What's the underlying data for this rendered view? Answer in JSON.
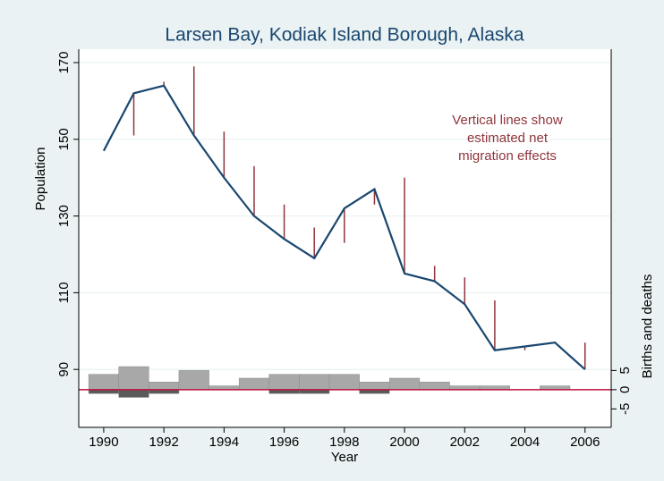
{
  "chart_data": {
    "type": "line",
    "title": "Larsen Bay, Kodiak Island Borough, Alaska",
    "xlabel": "Year",
    "ylabel": "Population",
    "y2label": "Births and deaths",
    "annotation": [
      "Vertical lines show",
      "estimated net",
      "migration effects"
    ],
    "annotation_color": "#90353b",
    "x": [
      1990,
      1991,
      1992,
      1993,
      1994,
      1995,
      1996,
      1997,
      1998,
      1999,
      2000,
      2001,
      2002,
      2003,
      2004,
      2005,
      2006
    ],
    "series": [
      {
        "type": "line",
        "color": "#1a476f",
        "values": [
          147,
          162,
          164,
          151,
          140,
          130,
          124,
          119,
          132,
          137,
          115,
          113,
          107,
          95,
          96,
          97,
          90
        ]
      },
      {
        "type": "spike",
        "color": "#90353b",
        "values": [
          null,
          151,
          165,
          169,
          152,
          143,
          133,
          127,
          123,
          133,
          140,
          117,
          114,
          108,
          95,
          97,
          97
        ]
      },
      {
        "type": "bar",
        "axis": "y2",
        "color": "#a8a8a8",
        "values": [
          4,
          6,
          2,
          5,
          1,
          3,
          4,
          4,
          4,
          2,
          3,
          2,
          1,
          1,
          0,
          1,
          0
        ]
      },
      {
        "type": "bar",
        "axis": "y2",
        "color": "#5a5a5a",
        "values": [
          -1,
          -2,
          -1,
          0,
          0,
          0,
          -1,
          -1,
          0,
          -1,
          0,
          0,
          0,
          0,
          0,
          0,
          0
        ]
      }
    ],
    "xlim": [
      1989.17,
      2006.87
    ],
    "xticks": [
      1990,
      1992,
      1994,
      1996,
      1998,
      2000,
      2002,
      2004,
      2006
    ],
    "ylim": [
      74.9,
      173.5
    ],
    "yticks": [
      90,
      110,
      130,
      150,
      170
    ],
    "y2lim": [
      -9.8,
      88.6
    ],
    "y2ticks": [
      -5,
      0,
      5
    ],
    "y2_reference_line": 0,
    "reference_color": "#c0103a",
    "grid": true
  }
}
